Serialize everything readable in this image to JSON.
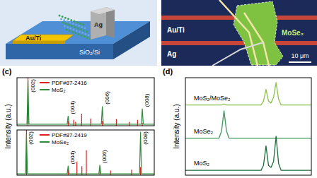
{
  "schematic": {
    "labels": [
      "Au/Ti",
      "Ag",
      "SiO₂/Si"
    ]
  },
  "micrograph": {
    "labels": [
      "Au/Ti",
      "Ag",
      "MoSe₂"
    ],
    "scale_bar": "10 μm"
  },
  "chart_data": [
    {
      "type": "line",
      "label": "(c)",
      "ylabel": "Intensity (a.u.)",
      "xlim": [
        10,
        65
      ],
      "tick_labels": false,
      "subplots": [
        {
          "ylim": [
            0,
            100
          ],
          "series": [
            {
              "name": "PDF#87-2416",
              "type": "bar",
              "color": "#e02020",
              "x": [
                14.4,
                30.5,
                32.7,
                33.5,
                35.9,
                39.5,
                44.2,
                49.8,
                55.0,
                58.3,
                60.2
              ],
              "values": [
                100,
                10,
                12,
                8,
                25,
                15,
                10,
                14,
                8,
                12,
                6
              ]
            },
            {
              "name": "MoS₂",
              "type": "line",
              "color": "#2e8b3a",
              "x": [
                10,
                14.0,
                14.4,
                14.8,
                30.1,
                30.5,
                30.9,
                43.8,
                44.2,
                44.6,
                59.8,
                60.2,
                60.6,
                65
              ],
              "values": [
                3,
                3,
                95,
                3,
                3,
                20,
                3,
                3,
                40,
                3,
                3,
                35,
                3,
                3
              ]
            }
          ],
          "annotations": [
            {
              "text": "(002)",
              "x": 14.4
            },
            {
              "text": "(004)",
              "x": 30.5
            },
            {
              "text": "(006)",
              "x": 44.2
            },
            {
              "text": "(008)",
              "x": 60.2
            }
          ]
        },
        {
          "ylim": [
            0,
            100
          ],
          "series": [
            {
              "name": "PDF#87-2419",
              "type": "bar",
              "color": "#e02020",
              "x": [
                13.8,
                30.5,
                34.0,
                36.0,
                37.8,
                43.2,
                47.5,
                55.9,
                59.5
              ],
              "values": [
                100,
                12,
                30,
                20,
                55,
                15,
                10,
                12,
                18
              ]
            },
            {
              "name": "MoSe₂",
              "type": "line",
              "color": "#2e8b3a",
              "x": [
                10,
                13.4,
                13.8,
                14.2,
                30.1,
                30.5,
                30.9,
                42.8,
                43.2,
                43.6,
                59.1,
                59.5,
                59.9,
                65
              ],
              "values": [
                3,
                3,
                90,
                3,
                3,
                20,
                3,
                3,
                22,
                3,
                3,
                95,
                3,
                3
              ]
            }
          ],
          "annotations": [
            {
              "text": "(002)",
              "x": 13.8
            },
            {
              "text": "(004)",
              "x": 30.5
            },
            {
              "text": "(006)",
              "x": 43.2
            },
            {
              "text": "(008)",
              "x": 59.5
            }
          ]
        }
      ]
    },
    {
      "type": "line",
      "label": "(d)",
      "ylabel": "Intensity (a.u.)",
      "xlim": [
        150,
        450
      ],
      "ylim": [
        0,
        100
      ],
      "tick_labels": false,
      "x": [
        150,
        230,
        236,
        242,
        248,
        254,
        330,
        336,
        342,
        348,
        354,
        360,
        366,
        372,
        378,
        450
      ],
      "series": [
        {
          "name": "MoS₂/MoSe₂",
          "color": "#8bc34a",
          "values": [
            72,
            72,
            72,
            73,
            72,
            72,
            72,
            76,
            88,
            76,
            74,
            80,
            95,
            78,
            72,
            72
          ]
        },
        {
          "name": "MoSe₂",
          "color": "#3a9a5a",
          "values": [
            38,
            38,
            45,
            66,
            45,
            38,
            38,
            38,
            38,
            38,
            38,
            38,
            38,
            38,
            38,
            38
          ]
        },
        {
          "name": "MoS₂",
          "color": "#1e6b3a",
          "values": [
            5,
            5,
            5,
            5,
            5,
            5,
            5,
            10,
            30,
            10,
            8,
            14,
            40,
            12,
            5,
            5
          ]
        }
      ]
    }
  ]
}
